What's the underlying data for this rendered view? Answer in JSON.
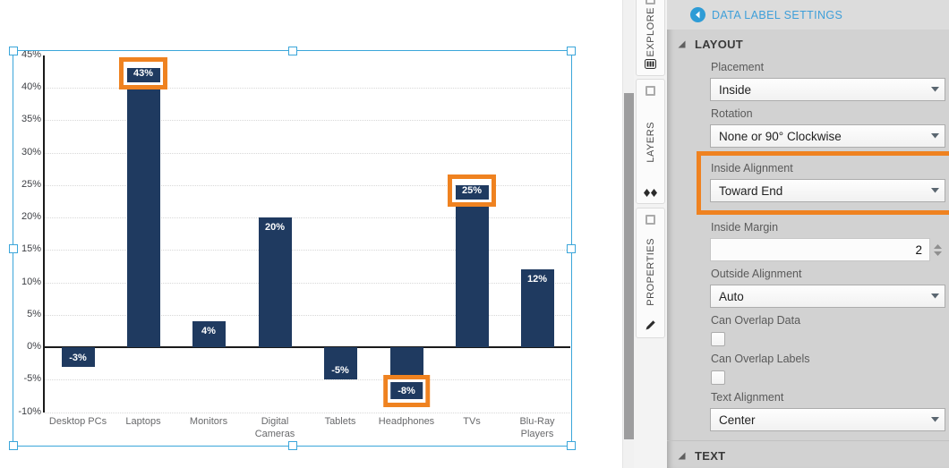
{
  "chart_data": {
    "type": "bar",
    "title": "",
    "categories": [
      "Desktop PCs",
      "Laptops",
      "Monitors",
      "Digital Cameras",
      "Tablets",
      "Headphones",
      "TVs",
      "Blu-Ray Players"
    ],
    "values": [
      -3,
      43,
      4,
      20,
      -5,
      -8,
      25,
      12
    ],
    "data_labels": [
      "-3%",
      "43%",
      "4%",
      "20%",
      "-5%",
      "-8%",
      "25%",
      "12%"
    ],
    "highlighted_indices": [
      1,
      5,
      6
    ],
    "y_tick_labels": [
      "45%",
      "40%",
      "35%",
      "30%",
      "25%",
      "20%",
      "15%",
      "10%",
      "5%",
      "0%",
      "-5%",
      "-10%"
    ],
    "y_tick_values": [
      45,
      40,
      35,
      30,
      25,
      20,
      15,
      10,
      5,
      0,
      -5,
      -10
    ],
    "ylim": [
      -10,
      45
    ],
    "xlabel": "",
    "ylabel": "",
    "grid": "horizontal-dotted",
    "legend": "none",
    "label_placement": "inside-toward-end",
    "bar_color": "#1F3A60",
    "data_label_color": "#FFFFFF",
    "highlight_box_color": "#EF8220"
  },
  "side_tabs": [
    {
      "label": "EXPLORE",
      "icon": "columns-icon"
    },
    {
      "label": "LAYERS",
      "icon": "layers-icon"
    },
    {
      "label": "PROPERTIES",
      "icon": "pencil-icon"
    }
  ],
  "panel": {
    "title": "DATA LABEL SETTINGS",
    "sections": [
      {
        "label": "LAYOUT"
      },
      {
        "label": "TEXT"
      }
    ],
    "fields": {
      "placement": {
        "label": "Placement",
        "value": "Inside"
      },
      "rotation": {
        "label": "Rotation",
        "value": "None or 90° Clockwise"
      },
      "inside_alignment": {
        "label": "Inside Alignment",
        "value": "Toward End",
        "highlighted": true
      },
      "inside_margin": {
        "label": "Inside Margin",
        "value": "2"
      },
      "outside_alignment": {
        "label": "Outside Alignment",
        "value": "Auto"
      },
      "can_overlap_data": {
        "label": "Can Overlap Data",
        "checked": false
      },
      "can_overlap_labels": {
        "label": "Can Overlap Labels",
        "checked": false
      },
      "text_alignment": {
        "label": "Text Alignment",
        "value": "Center"
      }
    }
  },
  "colors": {
    "accent_blue": "#3E9FD9",
    "selection_blue": "#3BA6DA",
    "highlight_orange": "#EF8220",
    "bar_navy": "#1F3A60",
    "panel_bg": "#D2D2D2"
  }
}
